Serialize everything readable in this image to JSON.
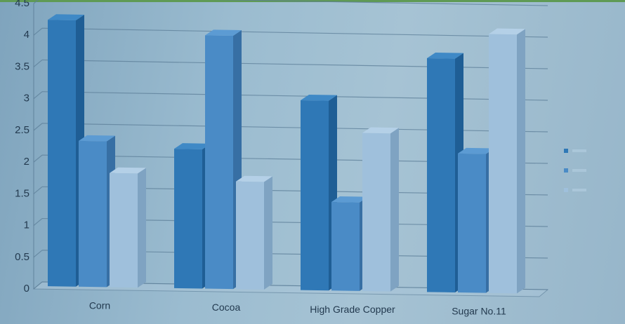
{
  "chart_data": {
    "type": "bar",
    "title": "",
    "xlabel": "",
    "ylabel": "",
    "categories": [
      "Corn",
      "Cocoa",
      "High Grade Copper",
      "Sugar No.11"
    ],
    "ylim": [
      0,
      4.5
    ],
    "yticks": [
      "0",
      "0.5",
      "1",
      "1.5",
      "2",
      "2.5",
      "3",
      "3.5",
      "4",
      "4.5"
    ],
    "series": [
      {
        "values": [
          4.2,
          2.2,
          3.0,
          3.7
        ]
      },
      {
        "values": [
          2.3,
          4.0,
          1.4,
          2.2
        ]
      },
      {
        "values": [
          1.8,
          1.7,
          2.5,
          4.1
        ]
      }
    ],
    "legend_position": "right",
    "grid": true,
    "colors": {
      "series": [
        "#2f78b6",
        "#4a8bc6",
        "#9fc0dc"
      ],
      "series_side": [
        "#1f5e95",
        "#376fa4",
        "#7fa3c2"
      ],
      "series_top": [
        "#3f89c6",
        "#5c9bd3",
        "#b4d0e7"
      ],
      "grid": "#5d7f99",
      "text": "#233a4f",
      "legend_text": "#b9d3e6"
    }
  }
}
